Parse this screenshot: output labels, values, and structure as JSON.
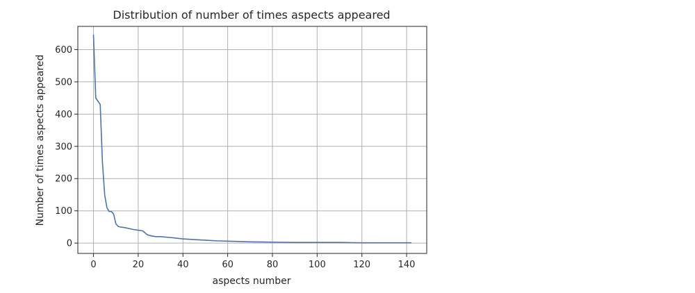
{
  "chart_data": {
    "type": "line",
    "title": "Distribution of number of times aspects appeared",
    "xlabel": "aspects number",
    "ylabel": "Number of times aspects appeared",
    "xlim": [
      -7,
      149
    ],
    "ylim": [
      -32,
      672
    ],
    "xticks": [
      0,
      20,
      40,
      60,
      80,
      100,
      120,
      140
    ],
    "yticks": [
      0,
      100,
      200,
      300,
      400,
      500,
      600
    ],
    "grid": true,
    "series": [
      {
        "color": "#4c72b0",
        "x": [
          0,
          1,
          2,
          3,
          4,
          5,
          6,
          7,
          8,
          9,
          10,
          11,
          12,
          14,
          16,
          18,
          20,
          22,
          23,
          24,
          26,
          28,
          30,
          35,
          40,
          45,
          50,
          55,
          60,
          65,
          70,
          80,
          90,
          100,
          110,
          120,
          130,
          142
        ],
        "y": [
          645,
          450,
          440,
          430,
          250,
          150,
          110,
          98,
          98,
          90,
          60,
          52,
          50,
          48,
          45,
          42,
          40,
          38,
          32,
          26,
          22,
          20,
          20,
          17,
          13,
          11,
          9,
          7,
          6,
          5,
          4,
          3,
          2,
          2,
          2,
          1,
          1,
          1
        ]
      }
    ]
  }
}
